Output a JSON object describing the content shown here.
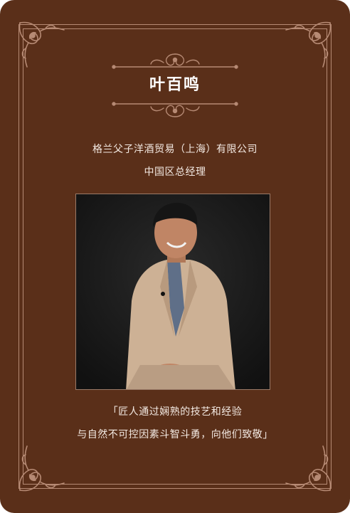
{
  "person": {
    "name": "叶百鸣",
    "company": "格兰父子洋酒贸易（上海）有限公司",
    "position": "中国区总经理"
  },
  "quote": {
    "line1": "「匠人通过娴熟的技艺和经验",
    "line2": "与自然不可控因素斗智斗勇，向他们致敬」"
  },
  "colors": {
    "background": "#5a2f19",
    "ornament": "#b68a74",
    "text": "#f3e9e2"
  },
  "icons": {
    "corner": "floral-corner-ornament",
    "divider": "floral-divider-ornament"
  }
}
